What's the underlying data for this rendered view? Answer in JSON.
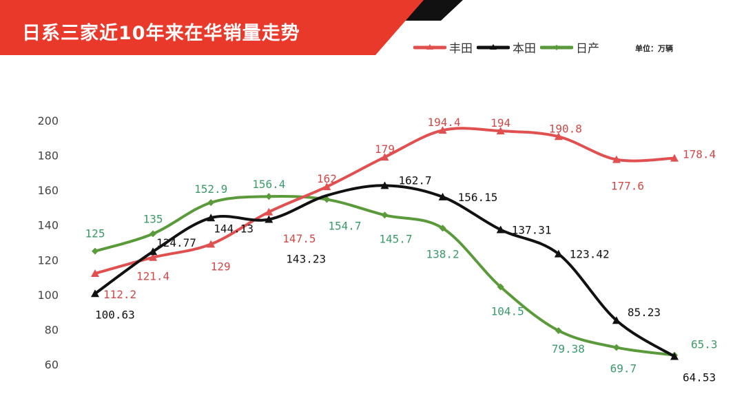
{
  "header": {
    "title": "日系三家近10年来在华销量走势",
    "banner_color": "#e8392b"
  },
  "legend": {
    "unit": "单位：万辆"
  },
  "chart_data": {
    "type": "line",
    "title": "日系三家近10年来在华销量走势",
    "ylabel": "",
    "xlabel": "",
    "ylim": [
      60,
      200
    ],
    "yticks": [
      200,
      180,
      160,
      140,
      120,
      100,
      80,
      60
    ],
    "grid": false,
    "legend_position": "top-right",
    "smooth": true,
    "series": [
      {
        "name": "丰田",
        "color": "#e05050",
        "marker": "triangle",
        "values": [
          112.2,
          121.4,
          129,
          147.5,
          162,
          179,
          194.4,
          194,
          190.8,
          177.6,
          178.4
        ],
        "labels": [
          "112.2",
          "121.4",
          "129",
          "147.5",
          "162",
          "179",
          "194.4",
          "194",
          "190.8",
          "177.6",
          "178.4"
        ]
      },
      {
        "name": "本田",
        "color": "#111111",
        "marker": "triangle",
        "values": [
          100.63,
          124.77,
          144.13,
          143.23,
          null,
          162.7,
          156.15,
          137.31,
          123.42,
          85.23,
          64.53
        ],
        "labels": [
          "100.63",
          "124.77",
          "144.13",
          "143.23",
          "",
          "162.7",
          "156.15",
          "137.31",
          "123.42",
          "85.23",
          "64.53"
        ]
      },
      {
        "name": "日产",
        "color": "#5a9a3a",
        "marker": "diamond",
        "values": [
          125,
          135,
          152.9,
          156.4,
          154.7,
          145.7,
          138.2,
          104.5,
          79.38,
          69.7,
          65.3
        ],
        "labels": [
          "125",
          "135",
          "152.9",
          "156.4",
          "154.7",
          "145.7",
          "138.2",
          "104.5",
          "79.38",
          "69.7",
          "65.3"
        ]
      }
    ]
  }
}
